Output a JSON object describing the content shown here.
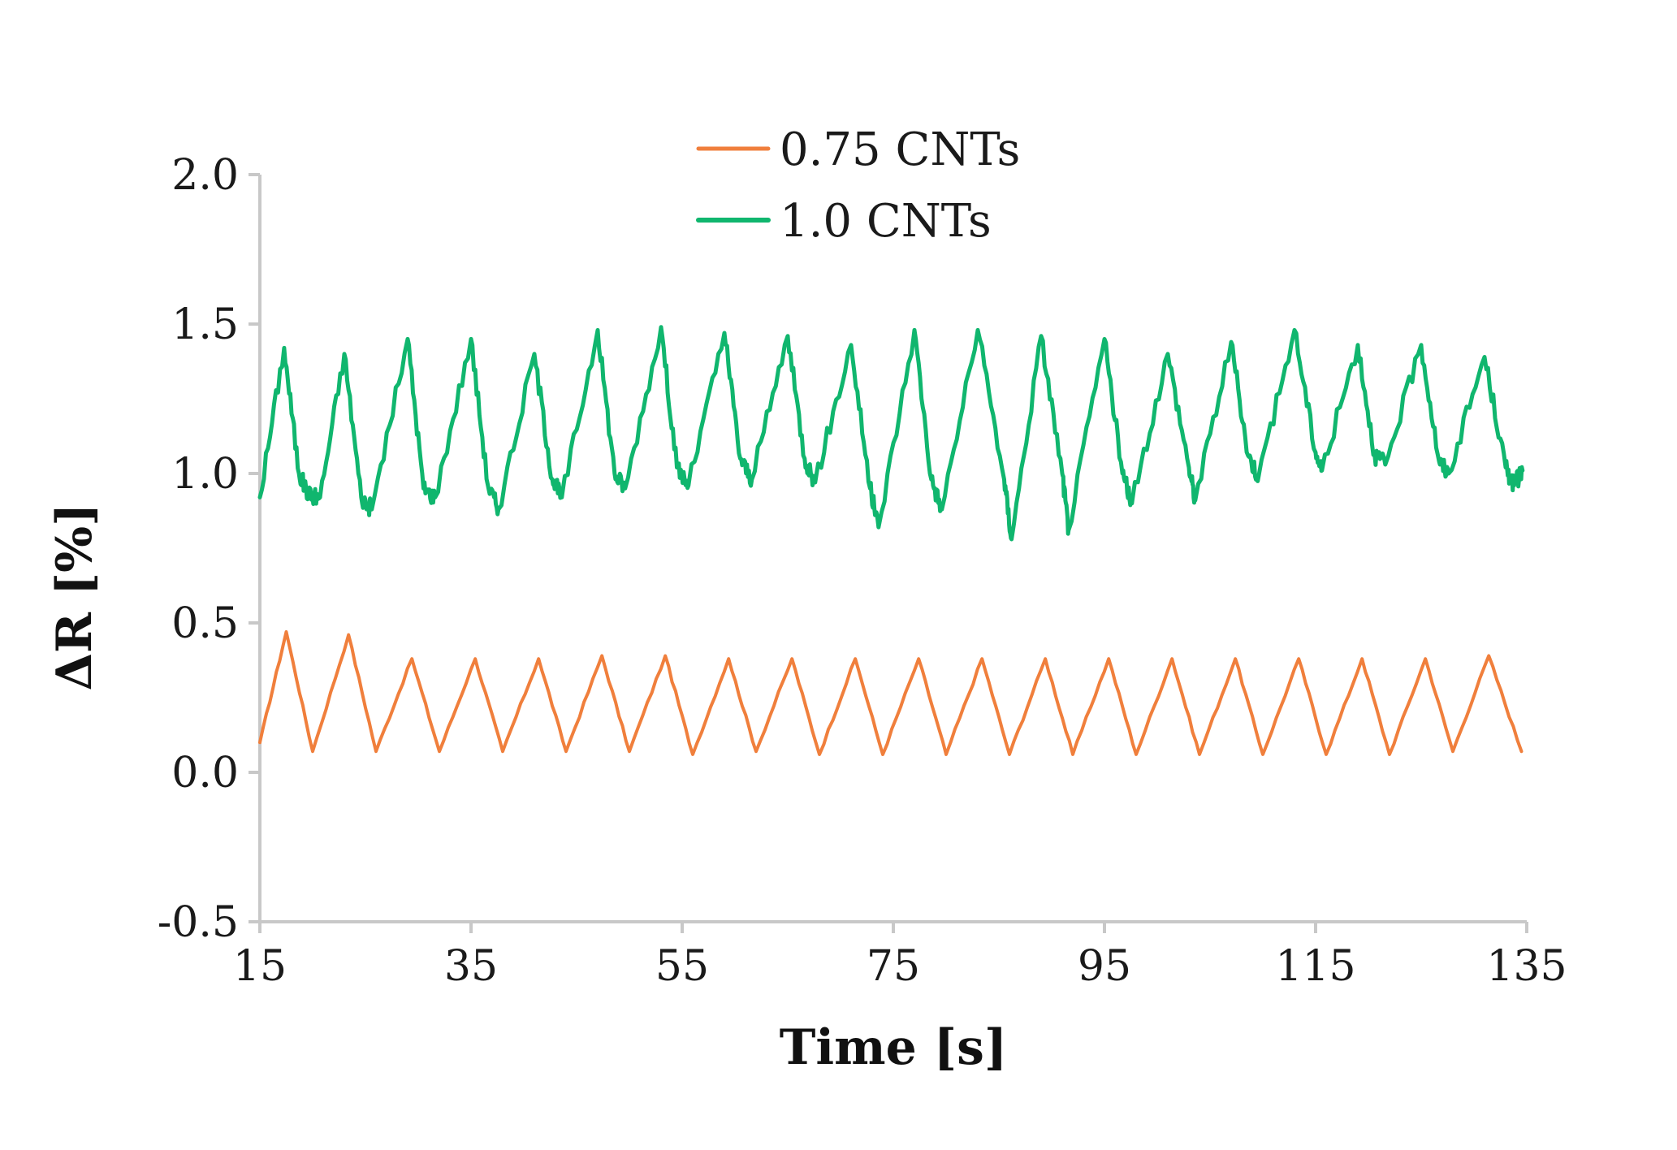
{
  "chart_data": {
    "type": "line",
    "title": "",
    "xlabel": "Time [s]",
    "ylabel": "ΔR [%]",
    "xlim": [
      15,
      135
    ],
    "ylim": [
      -0.5,
      2.0
    ],
    "xticks": [
      15,
      35,
      55,
      75,
      95,
      115,
      135
    ],
    "xtick_labels": [
      "15",
      "35",
      "55",
      "75",
      "95",
      "115",
      "135"
    ],
    "yticks": [
      -0.5,
      0.0,
      0.5,
      1.0,
      1.5,
      2.0
    ],
    "ytick_labels": [
      "-0.5",
      "0.0",
      "0.5",
      "1.0",
      "1.5",
      "2.0"
    ],
    "grid": false,
    "legend_position": "top-center",
    "series": [
      {
        "name": "0.75 CNTs",
        "color": "#f07f3c",
        "x": [
          15.0,
          17.5,
          20.0,
          23.4,
          26.0,
          29.4,
          32.0,
          35.4,
          38.0,
          41.4,
          44.0,
          47.4,
          50.0,
          53.4,
          56.0,
          59.4,
          62.0,
          65.4,
          68.0,
          71.4,
          74.0,
          77.4,
          80.0,
          83.4,
          86.0,
          89.4,
          92.0,
          95.4,
          98.0,
          101.4,
          104.0,
          107.4,
          110.0,
          113.4,
          116.0,
          119.4,
          122.0,
          125.4,
          128.0,
          131.4,
          134.5
        ],
        "y": [
          0.1,
          0.47,
          0.07,
          0.46,
          0.07,
          0.38,
          0.07,
          0.38,
          0.07,
          0.38,
          0.07,
          0.39,
          0.07,
          0.39,
          0.06,
          0.38,
          0.07,
          0.38,
          0.06,
          0.38,
          0.06,
          0.38,
          0.06,
          0.38,
          0.06,
          0.38,
          0.06,
          0.38,
          0.06,
          0.38,
          0.06,
          0.38,
          0.06,
          0.38,
          0.06,
          0.38,
          0.06,
          0.38,
          0.07,
          0.39,
          0.07
        ]
      },
      {
        "name": "1.0 CNTs",
        "color": "#10b66e",
        "x": [
          15.0,
          17.3,
          18.7,
          19.6,
          20.7,
          23.0,
          24.6,
          25.6,
          29.0,
          30.5,
          31.6,
          35.0,
          36.6,
          37.6,
          41.0,
          42.7,
          43.6,
          47.0,
          48.6,
          49.6,
          53.0,
          54.5,
          55.6,
          59.0,
          60.5,
          61.6,
          65.0,
          66.6,
          67.6,
          71.0,
          72.8,
          73.6,
          77.0,
          78.6,
          79.6,
          83.0,
          85.5,
          86.2,
          89.0,
          91.0,
          91.6,
          95.0,
          96.7,
          97.6,
          101.0,
          103.0,
          103.6,
          107.0,
          108.6,
          109.6,
          113.0,
          115.0,
          115.6,
          119.0,
          120.6,
          121.6,
          125.0,
          126.7,
          127.6,
          131.0,
          133.0,
          133.8,
          134.6
        ],
        "y": [
          0.92,
          1.42,
          1.0,
          0.93,
          0.92,
          1.4,
          0.92,
          0.88,
          1.45,
          0.95,
          0.92,
          1.45,
          0.96,
          0.88,
          1.4,
          0.98,
          0.92,
          1.48,
          1.0,
          0.95,
          1.49,
          1.02,
          0.96,
          1.47,
          1.05,
          0.98,
          1.46,
          1.05,
          0.97,
          1.43,
          0.95,
          0.82,
          1.48,
          0.98,
          0.88,
          1.48,
          0.98,
          0.78,
          1.46,
          1.0,
          0.81,
          1.45,
          1.0,
          0.9,
          1.4,
          1.02,
          0.91,
          1.44,
          1.06,
          0.99,
          1.48,
          1.07,
          1.01,
          1.43,
          1.06,
          1.03,
          1.43,
          1.04,
          1.0,
          1.39,
          1.02,
          0.96,
          1.01
        ]
      }
    ]
  }
}
